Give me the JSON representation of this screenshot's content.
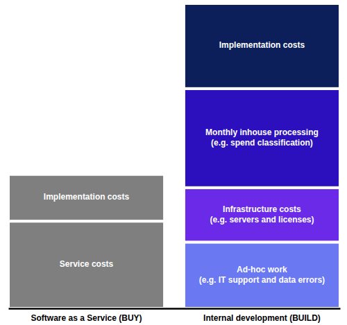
{
  "chart_data": {
    "type": "bar",
    "stacked": true,
    "tick_labels": "x",
    "categories": [
      "Software as a Service (BUY)",
      "Internal development (BUILD)"
    ],
    "series": [
      {
        "name": "Service costs",
        "color": "#7f7f7f",
        "values": [
          125,
          null
        ]
      },
      {
        "name": "Ad-hoc work\n(e.g. IT support and data errors)",
        "color": "#6a78f2",
        "values": [
          null,
          95
        ]
      },
      {
        "name": "Infrastructure costs\n(e.g. servers and licenses)",
        "color": "#6b2ae8",
        "values": [
          null,
          78
        ]
      },
      {
        "name": "Monthly inhouse processing\n(e.g. spend classification)",
        "color": "#2c10bd",
        "values": [
          null,
          142
        ]
      },
      {
        "name": "Implementation costs",
        "colors": [
          "#7f7f7f",
          "#0c1f5a"
        ],
        "values": [
          67,
          122
        ]
      }
    ]
  }
}
